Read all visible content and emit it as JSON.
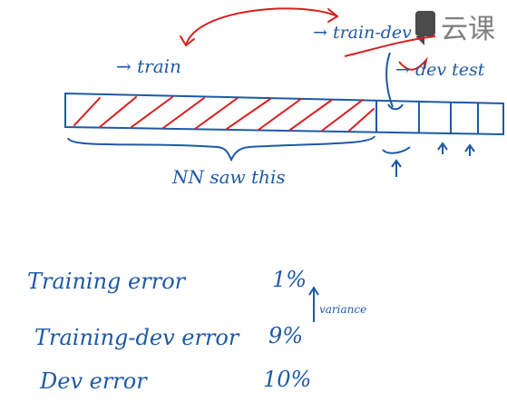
{
  "header": {
    "logo_text": "云课"
  },
  "diagram": {
    "labels": {
      "train": "→ train",
      "train_dev": "→ train-dev",
      "dev_test": "→ dev test",
      "nn_saw_this": "NN saw this"
    }
  },
  "error_table": {
    "rows": [
      {
        "label": "Training error",
        "value": "1%"
      },
      {
        "label": "Training-dev error",
        "value": "9%"
      },
      {
        "label": "Dev error",
        "value": "10%"
      }
    ],
    "annotation": "variance"
  },
  "colors": {
    "ink_blue": "#1d5aa6",
    "ink_red": "#d71f1f",
    "logo_gray": "#8a8a8a"
  }
}
